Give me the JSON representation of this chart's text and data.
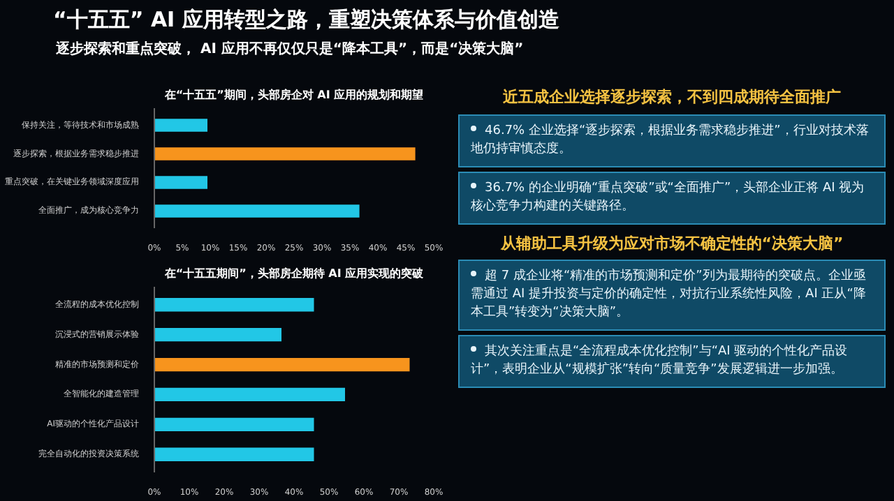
{
  "chart_data": [
    {
      "type": "other",
      "title": "“十五五” AI 应用转型之路，重塑决策体系与价值创造",
      "subtitle": "逐步探索和重点突破， AI 应用不再仅仅只是“降本工具”，而是“决策大脑”",
      "annotations": [
        "近五成企业选择逐步探索，不到四成期待全面推广",
        "46.7% 企业选择“逐步探索，根据业务需求稳步推进”，行业对技术落地仍持审慎态度。",
        "36.7% 的企业明确“重点突破”或“全面推广”，头部企业正将 AI 视为核心竞争力构建的关键路径。",
        "从辅助工具升级为应对市场不确定性的“决策大脑”",
        "超 7 成企业将“精准的市场预测和定价”列为最期待的突破点。企业亟需通过 AI 提升投资与定价的确定性，对抗行业系统性风险，AI 正从“降本工具”转变为“决策大脑”。",
        "其次关注重点是“全流程成本优化控制”与“AI 驱动的个性化产品设计”，表明企业从“规模扩张”转向“质量竞争”发展逻辑进一步加强。"
      ]
    },
    {
      "type": "bar",
      "orientation": "horizontal",
      "title": "在“十五五”期间，头部房企对 AI 应用的规划和期望",
      "categories": [
        "保持关注，等待技术和市场成熟",
        "逐步探索，根据业务需求稳步推进",
        "重点突破，在关键业务领域深度应用",
        "全面推广，成为核心竞争力"
      ],
      "values": [
        9.5,
        46.7,
        9.5,
        36.7
      ],
      "colors": [
        "#22c7e6",
        "#f7941d",
        "#22c7e6",
        "#22c7e6"
      ],
      "xlim": [
        0,
        50
      ],
      "xticks": [
        {
          "value": 0,
          "label": "0%"
        },
        {
          "value": 5,
          "label": "5%"
        },
        {
          "value": 10,
          "label": "10%"
        },
        {
          "value": 15,
          "label": "15%"
        },
        {
          "value": 20,
          "label": "20%"
        },
        {
          "value": 25,
          "label": "25%"
        },
        {
          "value": 30,
          "label": "30%"
        },
        {
          "value": 35,
          "label": "35%"
        },
        {
          "value": 40,
          "label": "40%"
        },
        {
          "value": 45,
          "label": "45%"
        },
        {
          "value": 50,
          "label": "50%"
        }
      ]
    },
    {
      "type": "bar",
      "orientation": "horizontal",
      "title": "在“十五五期间”，头部房企期待 AI 应用实现的突破",
      "categories": [
        "全流程的成本优化控制",
        "沉浸式的营销展示体验",
        "精准的市场预测和定价",
        "全智能化的建造管理",
        "AI驱动的个性化产品设计",
        "完全自动化的投资决策系统"
      ],
      "values": [
        45.7,
        36.4,
        73.1,
        54.6,
        45.7,
        45.7
      ],
      "colors": [
        "#22c7e6",
        "#22c7e6",
        "#f7941d",
        "#22c7e6",
        "#22c7e6",
        "#22c7e6"
      ],
      "xlim": [
        0,
        80
      ],
      "xticks": [
        {
          "value": 0,
          "label": "0%"
        },
        {
          "value": 10,
          "label": "10%"
        },
        {
          "value": 20,
          "label": "20%"
        },
        {
          "value": 30,
          "label": "30%"
        },
        {
          "value": 40,
          "label": "40%"
        },
        {
          "value": 50,
          "label": "50%"
        },
        {
          "value": 60,
          "label": "60%"
        },
        {
          "value": 70,
          "label": "70%"
        },
        {
          "value": 80,
          "label": "80%"
        }
      ]
    }
  ]
}
